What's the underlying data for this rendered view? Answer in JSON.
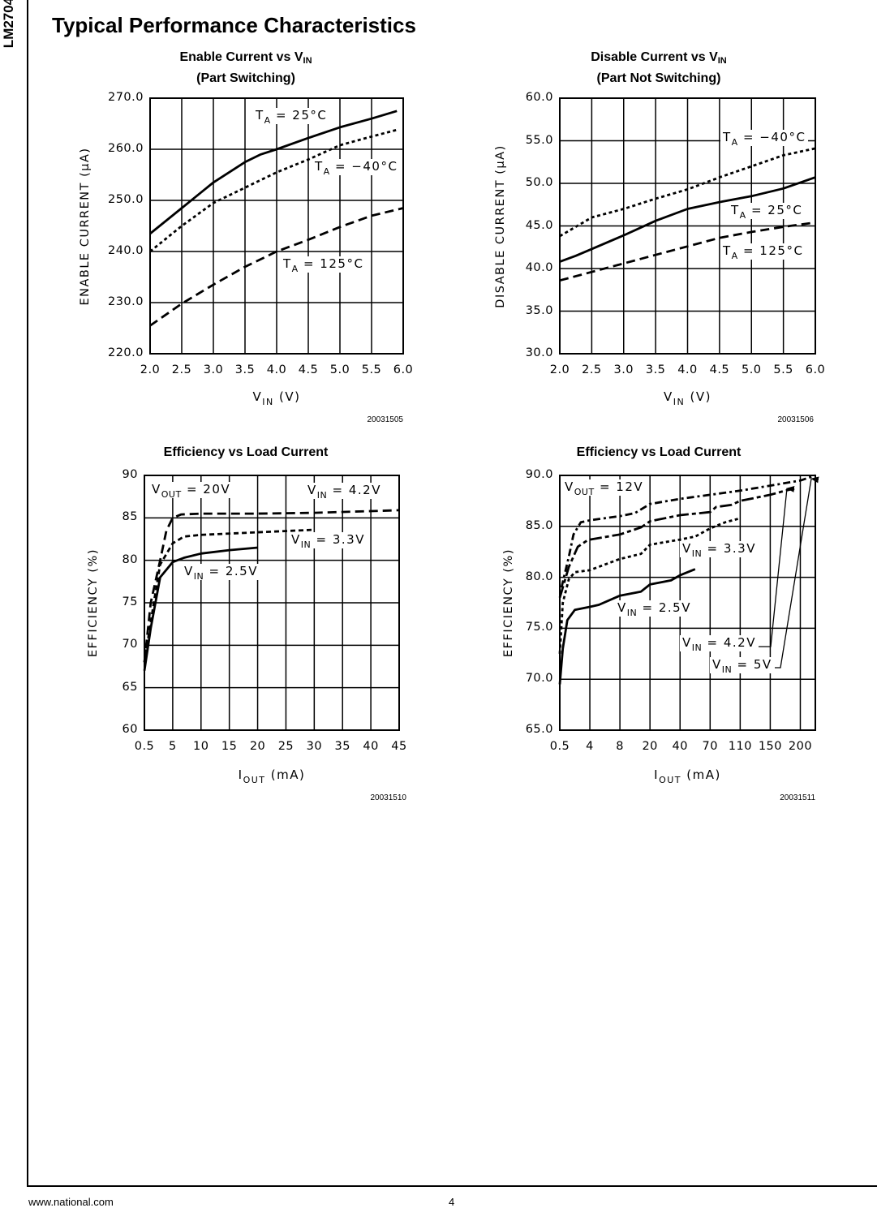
{
  "side_label": "LM2704",
  "page_title": "Typical Performance Characteristics",
  "footer": {
    "url": "www.national.com",
    "page": "4"
  },
  "chart_data": [
    {
      "type": "line",
      "title": {
        "main": "Enable Current vs V",
        "sub": "IN",
        "line2": "(Part Switching)"
      },
      "ylabel": "ENABLE CURRENT (μA)",
      "xlabel": {
        "main": "V",
        "sub": "IN",
        "rest": "  (V)"
      },
      "xticks": [
        "2.0",
        "2.5",
        "3.0",
        "3.5",
        "4.0",
        "4.5",
        "5.0",
        "5.5",
        "6.0"
      ],
      "yticks": [
        "220.0",
        "230.0",
        "240.0",
        "250.0",
        "260.0",
        "270.0"
      ],
      "xlim": [
        2.0,
        6.0
      ],
      "ylim": [
        220,
        270
      ],
      "grid": true,
      "figure_id": "20031505",
      "series": [
        {
          "name": {
            "main": "T",
            "sub": "A",
            "rest": " = 25°C"
          },
          "style": "solid",
          "x": [
            2.0,
            2.5,
            3.0,
            3.5,
            3.75,
            4.0,
            4.5,
            5.0,
            5.5,
            5.9
          ],
          "y": [
            243.5,
            248.5,
            253.5,
            257.5,
            259,
            260,
            262.2,
            264.3,
            266,
            267.5
          ]
        },
        {
          "name": {
            "main": "T",
            "sub": "A",
            "rest": " = −40°C"
          },
          "style": "dotted",
          "x": [
            2.0,
            2.5,
            3.0,
            3.5,
            4.0,
            4.5,
            5.0,
            5.5,
            5.9
          ],
          "y": [
            240,
            245,
            249.5,
            252.5,
            255.5,
            258,
            260.8,
            262.5,
            263.8
          ]
        },
        {
          "name": {
            "main": "T",
            "sub": "A",
            "rest": " = 125°C"
          },
          "style": "dashed",
          "x": [
            2.0,
            2.5,
            3.0,
            3.5,
            4.0,
            4.5,
            5.0,
            5.5,
            6.0
          ],
          "y": [
            225.5,
            229.8,
            233.5,
            237,
            240,
            242.3,
            244.8,
            247,
            248.5
          ]
        }
      ],
      "annotations": []
    },
    {
      "type": "line",
      "title": {
        "main": "Disable Current vs V",
        "sub": "IN",
        "line2": "(Part Not Switching)"
      },
      "ylabel": "DISABLE CURRENT (μA)",
      "xlabel": {
        "main": "V",
        "sub": "IN",
        "rest": "  (V)"
      },
      "xticks": [
        "2.0",
        "2.5",
        "3.0",
        "3.5",
        "4.0",
        "4.5",
        "5.0",
        "5.5",
        "6.0"
      ],
      "yticks": [
        "30.0",
        "35.0",
        "40.0",
        "45.0",
        "50.0",
        "55.0",
        "60.0"
      ],
      "xlim": [
        2.0,
        6.0
      ],
      "ylim": [
        30,
        60
      ],
      "grid": true,
      "figure_id": "20031506",
      "series": [
        {
          "name": {
            "main": "T",
            "sub": "A",
            "rest": " = −40°C"
          },
          "style": "dotted",
          "x": [
            2.0,
            2.5,
            3.0,
            3.5,
            4.0,
            4.5,
            5.0,
            5.5,
            6.0
          ],
          "y": [
            43.8,
            46,
            47,
            48.2,
            49.3,
            50.7,
            52,
            53.3,
            54.1
          ]
        },
        {
          "name": {
            "main": "T",
            "sub": "A",
            "rest": " = 25°C"
          },
          "style": "solid",
          "x": [
            2.0,
            2.25,
            2.5,
            3.0,
            3.5,
            4.0,
            4.5,
            5.0,
            5.5,
            6.0
          ],
          "y": [
            40.8,
            41.5,
            42.3,
            43.9,
            45.6,
            47,
            47.8,
            48.5,
            49.4,
            50.7
          ]
        },
        {
          "name": {
            "main": "T",
            "sub": "A",
            "rest": " = 125°C"
          },
          "style": "dashed",
          "x": [
            2.0,
            2.5,
            3.0,
            3.5,
            4.0,
            4.5,
            5.0,
            5.5,
            6.0
          ],
          "y": [
            38.6,
            39.6,
            40.6,
            41.6,
            42.6,
            43.6,
            44.3,
            44.9,
            45.4
          ]
        }
      ],
      "annotations": []
    },
    {
      "type": "line",
      "title": {
        "main": "Efficiency vs Load Current",
        "sub": "",
        "line2": ""
      },
      "ylabel": "EFFICIENCY (%)",
      "xlabel": {
        "main": "I",
        "sub": "OUT",
        "rest": "  (mA)"
      },
      "xticks": [
        "0.5",
        "5",
        "10",
        "15",
        "20",
        "25",
        "30",
        "35",
        "40",
        "45"
      ],
      "yticks": [
        "60",
        "65",
        "70",
        "75",
        "80",
        "85",
        "90"
      ],
      "xlim": [
        0.5,
        45
      ],
      "ylim": [
        60,
        90
      ],
      "grid": true,
      "figure_id": "20031510",
      "series": [
        {
          "name": {
            "main": "V",
            "sub": "IN",
            "rest": " = 4.2V"
          },
          "style": "dashed",
          "x": [
            0.5,
            1.5,
            3,
            4,
            5,
            6.5,
            10,
            20,
            30,
            40,
            45
          ],
          "y": [
            68,
            75,
            80,
            83.5,
            85,
            85.4,
            85.5,
            85.5,
            85.6,
            85.8,
            85.9
          ]
        },
        {
          "name": {
            "main": "V",
            "sub": "IN",
            "rest": " = 3.3V"
          },
          "style": "shortdash",
          "x": [
            0.5,
            2,
            3,
            5,
            7,
            10,
            20,
            30
          ],
          "y": [
            68,
            75,
            79.5,
            82,
            82.8,
            83,
            83.3,
            83.6
          ]
        },
        {
          "name": {
            "main": "V",
            "sub": "IN",
            "rest": " = 2.5V"
          },
          "style": "solid",
          "x": [
            0.5,
            1.5,
            3,
            5,
            7,
            10,
            15,
            20
          ],
          "y": [
            67,
            72,
            78,
            79.8,
            80.3,
            80.8,
            81.2,
            81.5
          ]
        }
      ],
      "annotations": [
        {
          "main": "V",
          "sub": "OUT",
          "rest": " = 20V"
        }
      ]
    },
    {
      "type": "line",
      "title": {
        "main": "Efficiency vs Load Current",
        "sub": "",
        "line2": ""
      },
      "ylabel": "EFFICIENCY (%)",
      "xlabel": {
        "main": "I",
        "sub": "OUT",
        "rest": "  (mA)"
      },
      "xticks": [
        "0.5",
        "4",
        "8",
        "20",
        "40",
        "70",
        "110",
        "150",
        "200"
      ],
      "yticks": [
        "65.0",
        "70.0",
        "75.0",
        "80.0",
        "85.0",
        "90.0"
      ],
      "xlim": [
        0.5,
        225
      ],
      "ylim": [
        65,
        90
      ],
      "grid": true,
      "figure_id": "20031511",
      "series": [
        {
          "name": {
            "main": "V",
            "sub": "IN",
            "rest": " = 5V"
          },
          "style": "dashdot",
          "x": [
            0.7,
            1.55,
            2.1,
            2.95,
            4,
            8,
            14,
            20,
            40,
            70,
            110,
            150,
            200,
            225
          ],
          "y": [
            79,
            82,
            84.2,
            85.4,
            85.6,
            86,
            86.3,
            87.2,
            87.7,
            88.1,
            88.5,
            89,
            89.5,
            90
          ]
        },
        {
          "name": {
            "main": "V",
            "sub": "IN",
            "rest": " = 4.2V"
          },
          "style": "longdashdot",
          "x": [
            0.5,
            1.55,
            2.6,
            3.65,
            4,
            8,
            16.4,
            20,
            40,
            70,
            78,
            98,
            110,
            150,
            175,
            190
          ],
          "y": [
            78,
            81,
            83,
            83.6,
            83.7,
            84.2,
            84.9,
            85.5,
            86.1,
            86.4,
            86.9,
            87.1,
            87.5,
            88.1,
            88.5,
            88.7
          ]
        },
        {
          "name": {
            "main": "V",
            "sub": "IN",
            "rest": " = 3.3V"
          },
          "style": "dotted",
          "x": [
            0.5,
            0.85,
            1.55,
            2.25,
            4,
            8,
            16.4,
            20,
            40,
            55,
            70,
            90,
            110
          ],
          "y": [
            72.5,
            77.5,
            79.8,
            80.5,
            80.7,
            81.8,
            82.3,
            83.2,
            83.7,
            84,
            84.8,
            85.4,
            85.8
          ]
        },
        {
          "name": {
            "main": "V",
            "sub": "IN",
            "rest": " = 2.5V"
          },
          "style": "solid",
          "x": [
            0.5,
            0.85,
            1.375,
            2.25,
            4,
            5.2,
            8,
            16.4,
            20,
            34,
            40,
            55
          ],
          "y": [
            69.5,
            73,
            75.8,
            76.8,
            77.1,
            77.3,
            78.2,
            78.6,
            79.3,
            79.7,
            80.2,
            80.8
          ]
        }
      ],
      "annotations": [
        {
          "main": "V",
          "sub": "OUT",
          "rest": " = 12V"
        }
      ]
    }
  ]
}
